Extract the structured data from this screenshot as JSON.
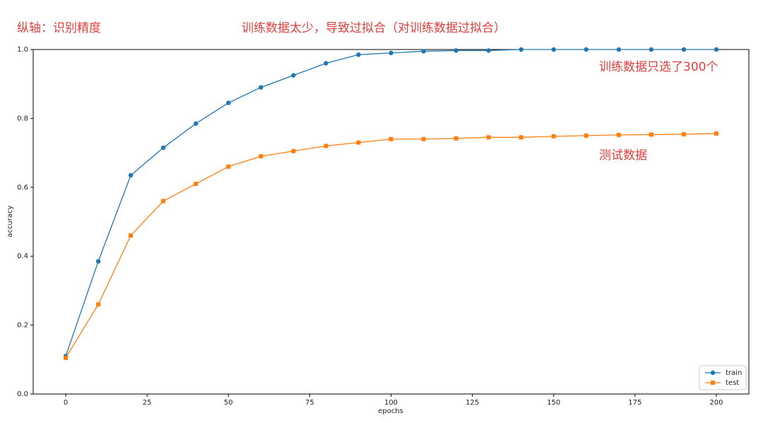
{
  "chart_data": {
    "type": "line",
    "annotations": [
      "纵轴：识别精度",
      "训练数据太少，导致过拟合（对训练数据过拟合）",
      "训练数据只选了300个",
      "测试数据"
    ],
    "xlabel": "epochs",
    "ylabel": "accuracy",
    "x": [
      0,
      10,
      20,
      30,
      40,
      50,
      60,
      70,
      80,
      90,
      100,
      110,
      120,
      130,
      140,
      150,
      160,
      170,
      180,
      190,
      200
    ],
    "series": [
      {
        "name": "train",
        "color": "#1f77b4",
        "marker": "circle",
        "values": [
          0.11,
          0.385,
          0.635,
          0.715,
          0.785,
          0.845,
          0.89,
          0.925,
          0.96,
          0.985,
          0.99,
          0.995,
          0.997,
          0.997,
          1.0,
          1.0,
          1.0,
          1.0,
          1.0,
          1.0,
          1.0
        ]
      },
      {
        "name": "test",
        "color": "#ff7f0e",
        "marker": "square",
        "values": [
          0.105,
          0.26,
          0.46,
          0.56,
          0.61,
          0.66,
          0.69,
          0.705,
          0.72,
          0.73,
          0.74,
          0.74,
          0.742,
          0.745,
          0.745,
          0.748,
          0.75,
          0.752,
          0.753,
          0.754,
          0.756
        ]
      }
    ],
    "xlim": [
      -10,
      210
    ],
    "xticks": [
      0,
      25,
      50,
      75,
      100,
      125,
      150,
      175,
      200
    ],
    "ylim": [
      0,
      1
    ],
    "yticks": [
      {
        "value": 0,
        "label": "0.0"
      },
      {
        "value": 0.2,
        "label": "0.2"
      },
      {
        "value": 0.4,
        "label": "0.4"
      },
      {
        "value": 0.6,
        "label": "0.6"
      },
      {
        "value": 0.8,
        "label": "0.8"
      },
      {
        "value": 1,
        "label": "1.0"
      }
    ],
    "legend": "lower right"
  }
}
